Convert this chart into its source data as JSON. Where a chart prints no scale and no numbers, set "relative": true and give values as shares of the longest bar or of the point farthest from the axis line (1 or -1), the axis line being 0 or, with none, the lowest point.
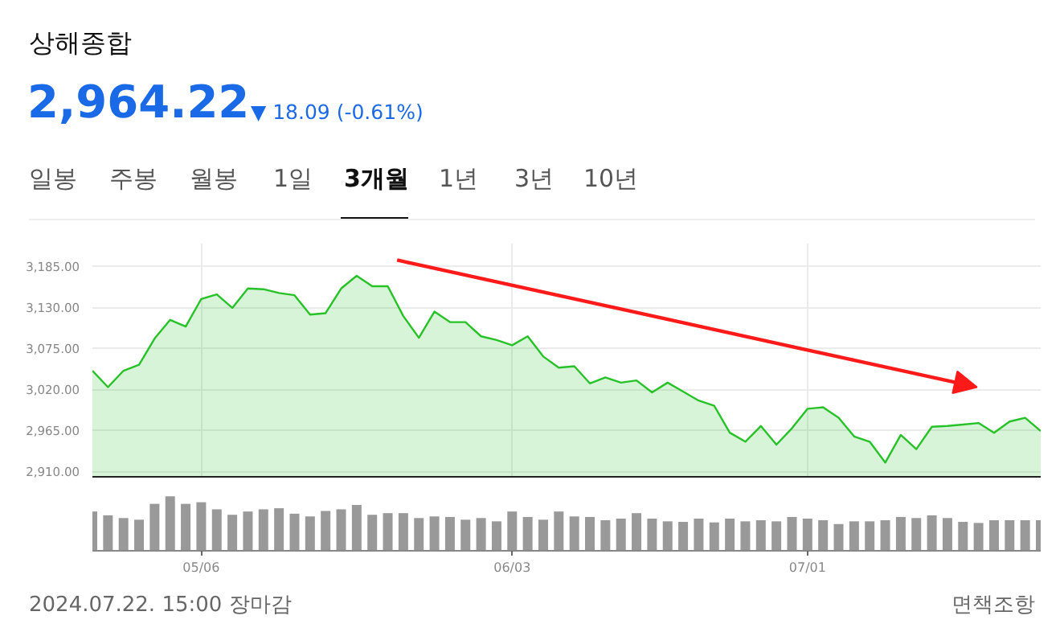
{
  "chart_data": [
    {
      "type": "area",
      "title": "상해종합",
      "subtitle": "2,964.22",
      "annotations": [
        "▼ 18.09 (-0.61%)",
        "일봉",
        "주봉",
        "월봉",
        "1일",
        "3개월",
        "1년",
        "3년",
        "10년",
        "2024.07.22. 15:00 장마감",
        "면책조항"
      ],
      "categories": [
        null,
        null,
        null,
        null,
        null,
        null,
        null,
        null,
        null,
        null,
        null,
        null,
        null,
        null,
        null,
        null,
        null,
        null,
        null,
        null,
        null,
        null,
        null,
        null,
        null,
        null,
        null,
        null,
        null,
        null,
        null,
        null,
        null,
        null,
        null,
        null,
        null,
        null,
        null,
        null,
        null,
        null,
        null,
        null,
        null,
        null,
        null,
        null,
        null,
        null,
        null,
        null,
        null,
        null,
        null,
        null,
        null,
        null,
        null,
        null,
        null,
        null
      ],
      "series": [
        {
          "color": "#27c227",
          "values": [
            3045,
            3023,
            3045,
            3053,
            3088,
            3113,
            3104,
            3141,
            3147,
            3129,
            3155,
            3154,
            3149,
            3146,
            3120,
            3122,
            3155,
            3172,
            3158,
            3158,
            3118,
            3089,
            3124,
            3110,
            3110,
            3091,
            3086,
            3079,
            3091,
            3064,
            3049,
            3051,
            3028,
            3036,
            3029,
            3032,
            3016,
            3029,
            3017,
            3005,
            2998,
            2962,
            2950,
            2971,
            2946,
            2968,
            2994,
            2996,
            2982,
            2957,
            2950,
            2922,
            2959,
            2940,
            2970,
            2971,
            2973,
            2975,
            2962,
            2977,
            2982,
            2964.22
          ]
        }
      ],
      "ylim": [
        2903,
        3215
      ],
      "yticks": [
        {
          "value": 2910,
          "label": "2,910.00"
        },
        {
          "value": 2965,
          "label": "2,965.00"
        },
        {
          "value": 3020,
          "label": "3,020.00"
        },
        {
          "value": 3075,
          "label": "3,075.00"
        },
        {
          "value": 3130,
          "label": "3,130.00"
        },
        {
          "value": 3185,
          "label": "3,185.00"
        }
      ],
      "grid": true,
      "tick_labels": "y"
    },
    {
      "type": "bar",
      "relative": true,
      "color": "#999999",
      "tick_labels": "x",
      "categories": [
        null,
        null,
        null,
        null,
        null,
        null,
        null,
        "05/06",
        null,
        null,
        null,
        null,
        null,
        null,
        null,
        null,
        null,
        null,
        null,
        null,
        null,
        null,
        null,
        null,
        null,
        null,
        null,
        "06/03",
        null,
        null,
        null,
        null,
        null,
        null,
        null,
        null,
        null,
        null,
        null,
        null,
        null,
        null,
        null,
        null,
        null,
        null,
        "07/01",
        null,
        null,
        null,
        null,
        null,
        null,
        null,
        null,
        null,
        null,
        null,
        null,
        null,
        null,
        null
      ],
      "values": [
        0.72,
        0.65,
        0.6,
        0.57,
        0.86,
        1,
        0.86,
        0.89,
        0.76,
        0.66,
        0.72,
        0.76,
        0.78,
        0.68,
        0.63,
        0.73,
        0.76,
        0.84,
        0.66,
        0.69,
        0.69,
        0.6,
        0.63,
        0.62,
        0.57,
        0.6,
        0.54,
        0.72,
        0.62,
        0.57,
        0.72,
        0.63,
        0.62,
        0.56,
        0.59,
        0.69,
        0.59,
        0.54,
        0.53,
        0.59,
        0.52,
        0.59,
        0.54,
        0.56,
        0.54,
        0.62,
        0.59,
        0.56,
        0.49,
        0.54,
        0.54,
        0.56,
        0.62,
        0.6,
        0.65,
        0.6,
        0.53,
        0.51,
        0.56,
        0.56,
        0.56,
        0.56
      ]
    }
  ]
}
